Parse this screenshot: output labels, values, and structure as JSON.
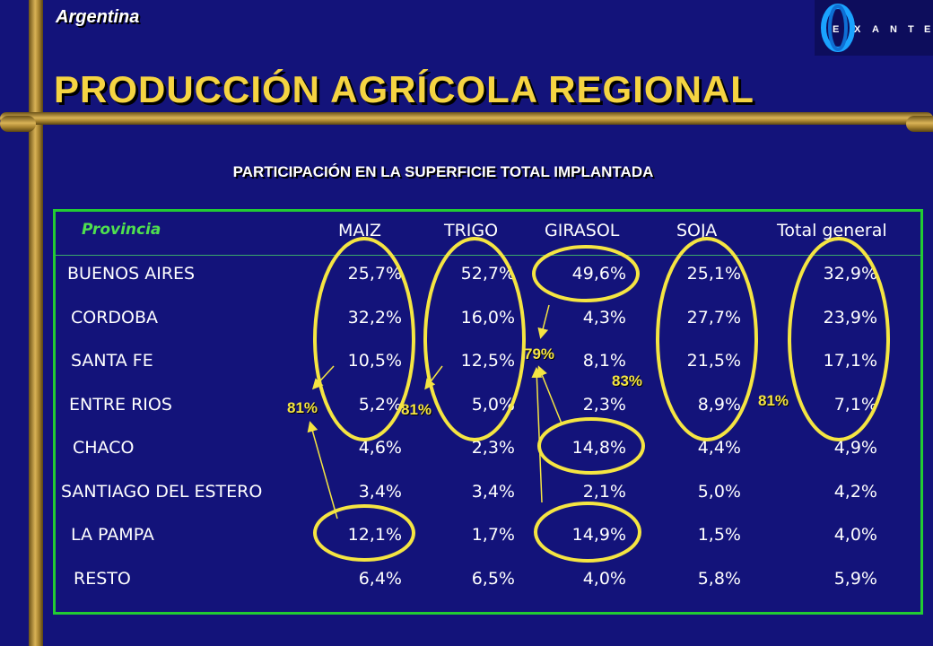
{
  "header": {
    "country": "Argentina",
    "title": "PRODUCCIÓN AGRÍCOLA REGIONAL",
    "subtitle": "PARTICIPACIÓN EN LA SUPERFICIE TOTAL IMPLANTADA",
    "logo_text": "EXANTE"
  },
  "table": {
    "columns": [
      "Provincia",
      "MAIZ",
      "TRIGO",
      "GIRASOL",
      "SOJA",
      "Total general"
    ],
    "rows": [
      [
        "BUENOS AIRES",
        "25,7%",
        "52,7%",
        "49,6%",
        "25,1%",
        "32,9%"
      ],
      [
        "CORDOBA",
        "32,2%",
        "16,0%",
        "4,3%",
        "27,7%",
        "23,9%"
      ],
      [
        "SANTA FE",
        "10,5%",
        "12,5%",
        "8,1%",
        "21,5%",
        "17,1%"
      ],
      [
        "ENTRE RIOS",
        "5,2%",
        "5,0%",
        "2,3%",
        "8,9%",
        "7,1%"
      ],
      [
        "CHACO",
        "4,6%",
        "2,3%",
        "14,8%",
        "4,4%",
        "4,9%"
      ],
      [
        "SANTIAGO DEL ESTERO",
        "3,4%",
        "3,4%",
        "2,1%",
        "5,0%",
        "4,2%"
      ],
      [
        "LA PAMPA",
        "12,1%",
        "1,7%",
        "14,9%",
        "1,5%",
        "4,0%"
      ],
      [
        "RESTO",
        "6,4%",
        "6,5%",
        "4,0%",
        "5,8%",
        "5,9%"
      ]
    ]
  },
  "annotations": {
    "maiz": "81%",
    "trigo": "81%",
    "girasol": "79%",
    "soja": "83%",
    "total": "81%"
  },
  "colors": {
    "background": "#13137a",
    "title": "#f5d442",
    "accent_yellow": "#f5e542",
    "table_border": "#22cc33",
    "header_provincia": "#4fe04f"
  }
}
